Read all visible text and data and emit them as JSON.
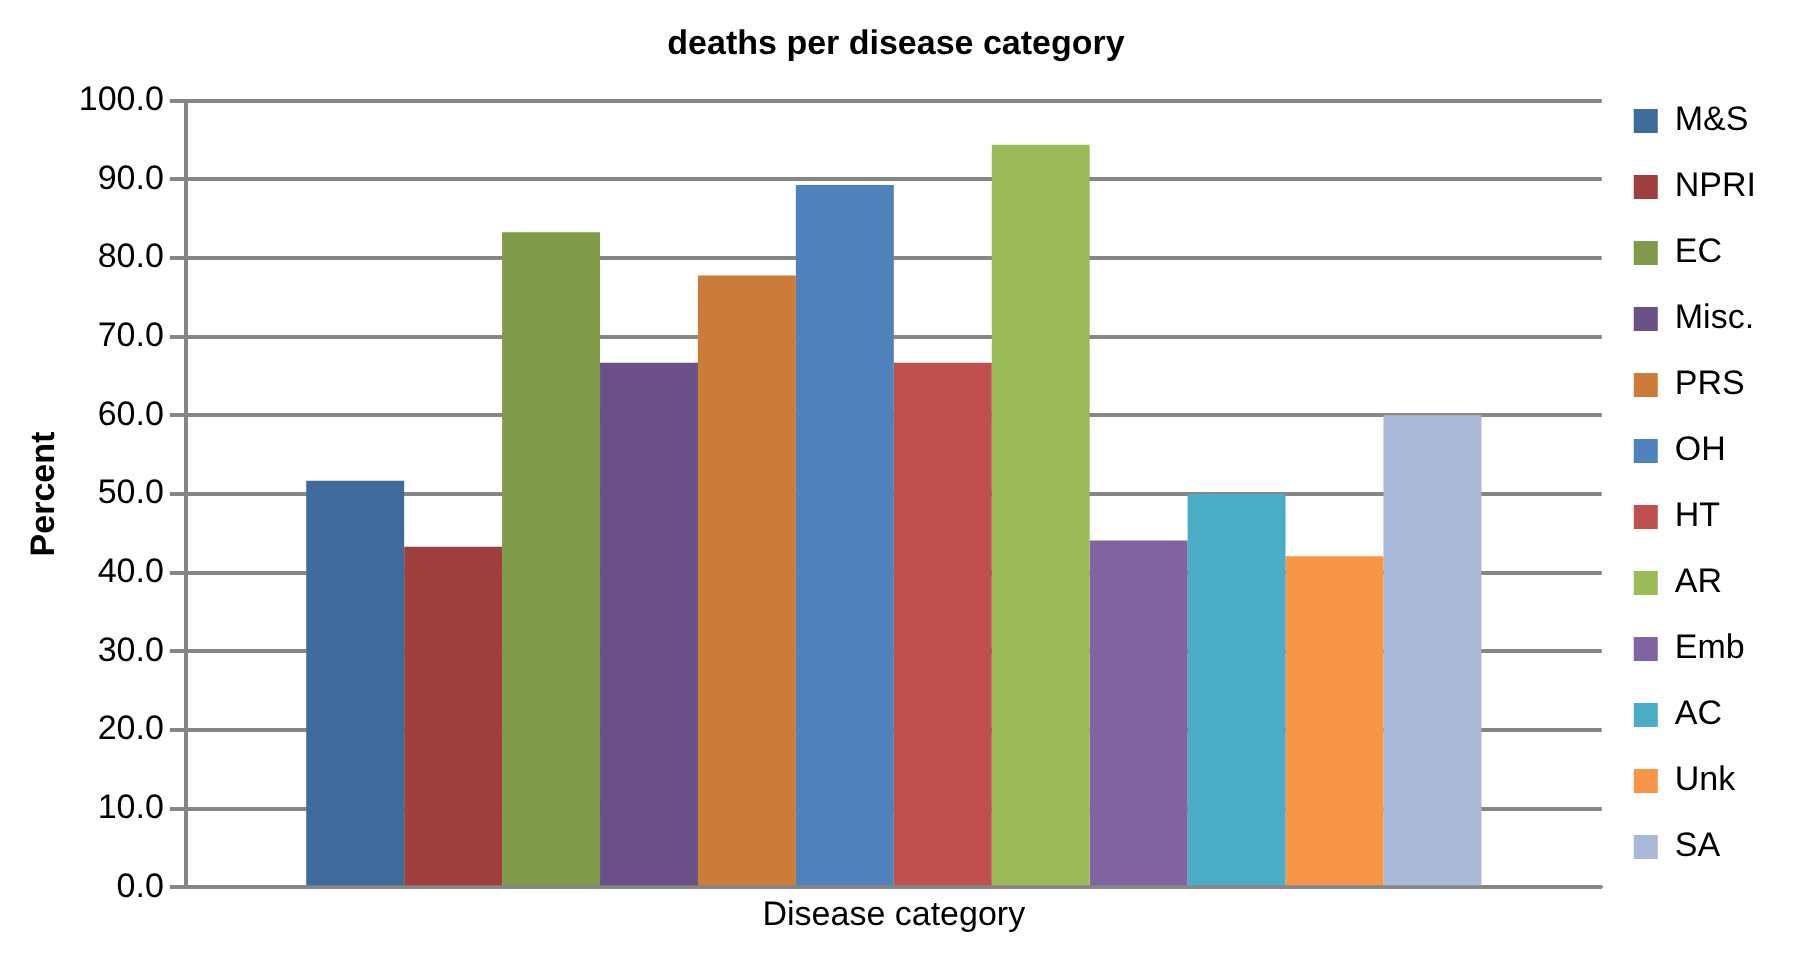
{
  "chart_data": {
    "type": "bar",
    "title": "deaths per disease category",
    "xlabel": "Disease category",
    "ylabel": "Percent",
    "categories": [
      null
    ],
    "series": [
      {
        "name": "M&S",
        "color": "#3e6a9c",
        "values": [
          51.7
        ]
      },
      {
        "name": "NPRI",
        "color": "#9e3f3d",
        "values": [
          43.3
        ]
      },
      {
        "name": "EC",
        "color": "#7f9a48",
        "values": [
          83.3
        ]
      },
      {
        "name": "Misc.",
        "color": "#6a5087",
        "values": [
          66.7
        ]
      },
      {
        "name": "PRS",
        "color": "#cc7b38",
        "values": [
          77.8
        ]
      },
      {
        "name": "OH",
        "color": "#4f81bd",
        "values": [
          89.3
        ]
      },
      {
        "name": "HT",
        "color": "#c0504d",
        "values": [
          66.7
        ]
      },
      {
        "name": "AR",
        "color": "#9bbb59",
        "values": [
          94.4
        ]
      },
      {
        "name": "Emb",
        "color": "#8064a2",
        "values": [
          44.1
        ]
      },
      {
        "name": "AC",
        "color": "#4bacc6",
        "values": [
          50.0
        ]
      },
      {
        "name": "Unk",
        "color": "#f79646",
        "values": [
          42.1
        ]
      },
      {
        "name": "SA",
        "color": "#aab9d7",
        "values": [
          60.0
        ]
      }
    ],
    "ylim": [
      0,
      100
    ],
    "yticks": [
      {
        "value": 0,
        "label": "0.0"
      },
      {
        "value": 10,
        "label": "10.0"
      },
      {
        "value": 20,
        "label": "20.0"
      },
      {
        "value": 30,
        "label": "30.0"
      },
      {
        "value": 40,
        "label": "40.0"
      },
      {
        "value": 50,
        "label": "50.0"
      },
      {
        "value": 60,
        "label": "60.0"
      },
      {
        "value": 70,
        "label": "70.0"
      },
      {
        "value": 80,
        "label": "80.0"
      },
      {
        "value": 90,
        "label": "90.0"
      },
      {
        "value": 100,
        "label": "100.0"
      }
    ],
    "grid": "y",
    "legend": "right",
    "tick_labels": "y"
  }
}
